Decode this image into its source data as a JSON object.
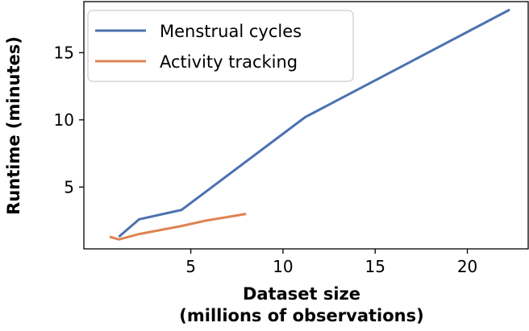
{
  "chart_data": {
    "type": "line",
    "title": "",
    "xlabel_lines": [
      "Dataset size",
      "(millions of observations)"
    ],
    "ylabel": "Runtime (minutes)",
    "xlim": [
      -0.8,
      23.3
    ],
    "ylim": [
      0.4,
      18.8
    ],
    "xticks": [
      5,
      10,
      15,
      20
    ],
    "yticks": [
      5,
      10,
      15
    ],
    "grid": false,
    "legend_position": "top-left",
    "series": [
      {
        "name": "Menstrual cycles",
        "color": "#4c72b0",
        "x": [
          1.1,
          2.2,
          4.5,
          11.2,
          22.3
        ],
        "y": [
          1.3,
          2.6,
          3.3,
          10.2,
          18.2
        ]
      },
      {
        "name": "Activity tracking",
        "color": "#dd8452",
        "x": [
          0.6,
          1.1,
          2.2,
          4.5,
          5.8,
          8.0
        ],
        "y": [
          1.3,
          1.1,
          1.5,
          2.1,
          2.5,
          3.0
        ]
      }
    ]
  }
}
